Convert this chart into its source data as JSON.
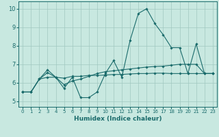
{
  "title": "",
  "xlabel": "Humidex (Indice chaleur)",
  "xlim": [
    -0.5,
    23.5
  ],
  "ylim": [
    4.7,
    10.4
  ],
  "xticks": [
    0,
    1,
    2,
    3,
    4,
    5,
    6,
    7,
    8,
    9,
    10,
    11,
    12,
    13,
    14,
    15,
    16,
    17,
    18,
    19,
    20,
    21,
    22,
    23
  ],
  "yticks": [
    5,
    6,
    7,
    8,
    9,
    10
  ],
  "bg_color": "#c8e8e0",
  "line_color": "#1a6b6b",
  "grid_color": "#a0c8c0",
  "series": [
    {
      "x": [
        0,
        1,
        2,
        3,
        4,
        5,
        6,
        7,
        8,
        9,
        10,
        11,
        12,
        13,
        14,
        15,
        16,
        17,
        18,
        19,
        20,
        21,
        22,
        23
      ],
      "y": [
        5.5,
        5.5,
        6.2,
        6.7,
        6.3,
        5.7,
        6.3,
        5.2,
        5.2,
        5.5,
        6.5,
        7.2,
        6.3,
        8.3,
        9.75,
        10.0,
        9.2,
        8.6,
        7.9,
        7.9,
        6.5,
        8.1,
        6.5,
        6.5
      ]
    },
    {
      "x": [
        0,
        1,
        2,
        3,
        4,
        5,
        6,
        7,
        8,
        9,
        10,
        11,
        12,
        13,
        14,
        15,
        16,
        17,
        18,
        19,
        20,
        21,
        22,
        23
      ],
      "y": [
        5.5,
        5.5,
        6.2,
        6.3,
        6.3,
        6.25,
        6.35,
        6.35,
        6.4,
        6.4,
        6.42,
        6.45,
        6.45,
        6.48,
        6.5,
        6.5,
        6.52,
        6.52,
        6.5,
        6.5,
        6.5,
        6.5,
        6.5,
        6.5
      ]
    },
    {
      "x": [
        0,
        1,
        2,
        3,
        4,
        5,
        6,
        7,
        8,
        9,
        10,
        11,
        12,
        13,
        14,
        15,
        16,
        17,
        18,
        19,
        20,
        21,
        22,
        23
      ],
      "y": [
        5.5,
        5.5,
        6.2,
        6.55,
        6.3,
        5.9,
        6.1,
        6.2,
        6.35,
        6.5,
        6.6,
        6.65,
        6.7,
        6.75,
        6.8,
        6.85,
        6.88,
        6.9,
        6.95,
        7.0,
        7.0,
        7.0,
        6.5,
        6.5
      ]
    }
  ]
}
